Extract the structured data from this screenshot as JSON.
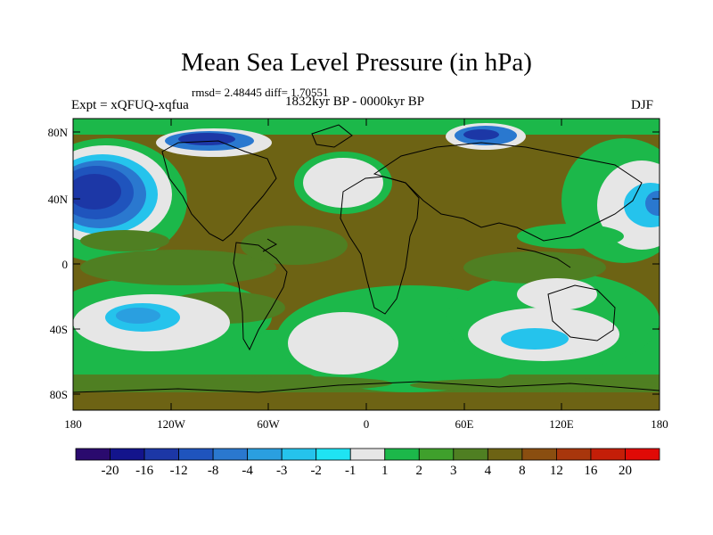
{
  "title": "Mean Sea Level Pressure (in hPa)",
  "stats": "rmsd= 2.48445 diff= 1.70551",
  "period": "1832kyr BP - 0000kyr BP",
  "experiment": "Expt = xQFUQ-xqfua",
  "season": "DJF",
  "axes": {
    "lat_labels": [
      "80N",
      "40N",
      "0",
      "40S",
      "80S"
    ],
    "lon_labels": [
      "180",
      "120W",
      "60W",
      "0",
      "60E",
      "120E",
      "180"
    ]
  },
  "colorbar": {
    "labels": [
      "-20",
      "-16",
      "-12",
      "-8",
      "-4",
      "-3",
      "-2",
      "-1",
      "1",
      "2",
      "3",
      "4",
      "8",
      "12",
      "16",
      "20"
    ],
    "colors": [
      "#2a0a6e",
      "#13148c",
      "#1c37a6",
      "#1f54bd",
      "#2a78cf",
      "#2a9fe0",
      "#25c3ec",
      "#1fe3f3",
      "#e6e6e6",
      "#1cb84a",
      "#3fa02c",
      "#4f7f22",
      "#6d6314",
      "#8a4e10",
      "#a8360c",
      "#c41e08",
      "#e00a06"
    ]
  }
}
